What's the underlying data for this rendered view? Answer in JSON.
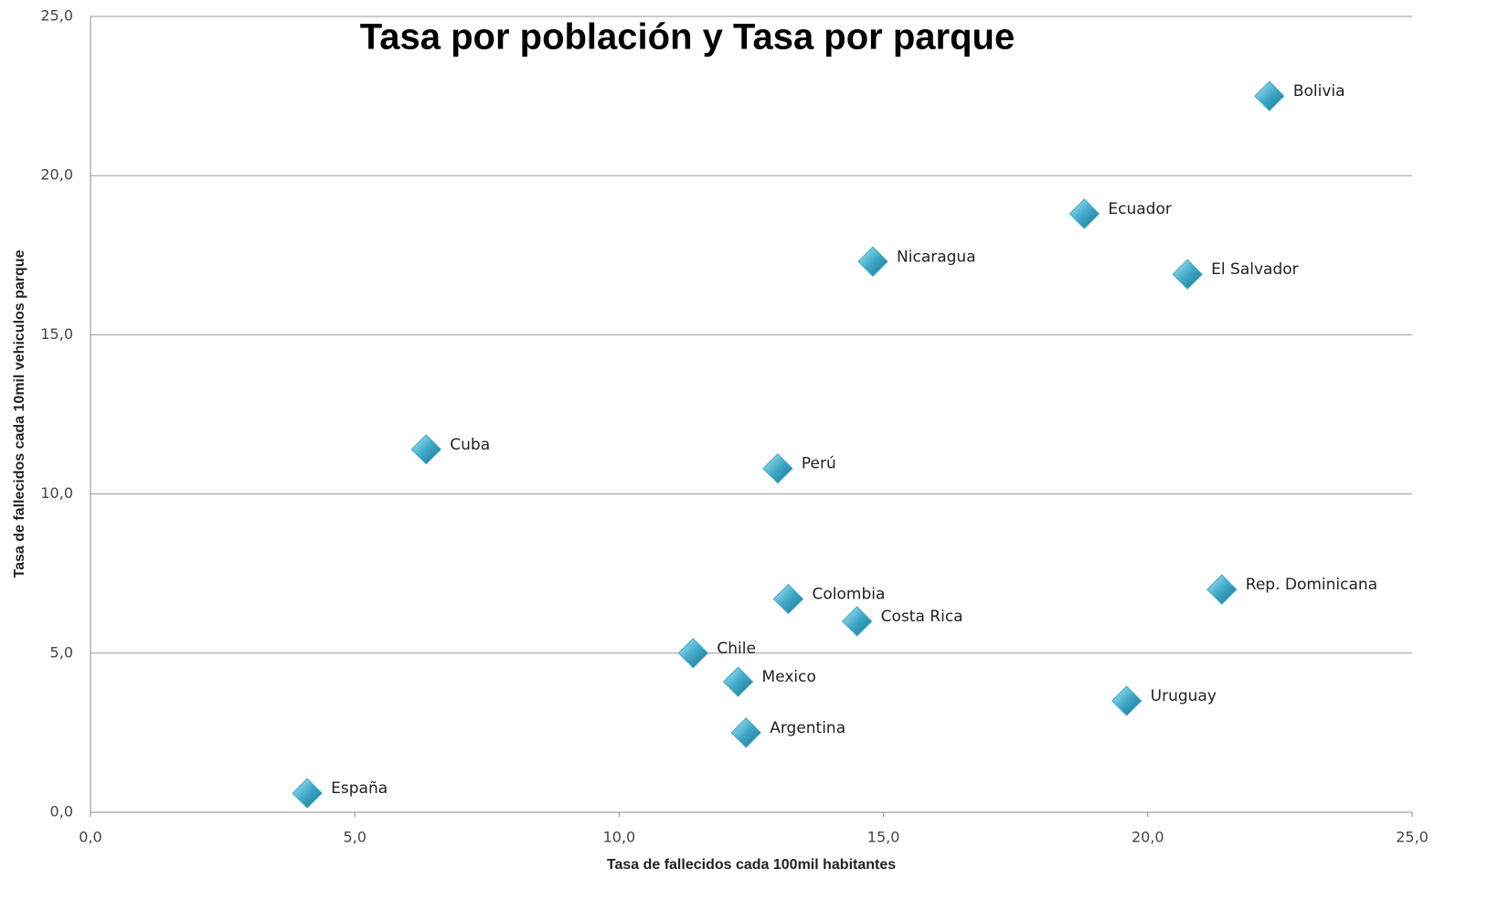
{
  "chart_data": {
    "type": "scatter",
    "title": "Tasa por población y Tasa por parque",
    "xlabel": "Tasa  de fallecidos  cada  100mil habitantes",
    "ylabel": "Tasa  de fallecidos  cada  10mil vehiculos  parque",
    "color": "#3fa9c8",
    "labels": [
      "España",
      "Cuba",
      "Chile",
      "Mexico",
      "Argentina",
      "Perú",
      "Colombia",
      "Costa Rica",
      "Nicaragua",
      "Ecuador",
      "Uruguay",
      "El Salvador",
      "Rep. Dominicana",
      "Bolivia"
    ],
    "x": [
      4.1,
      6.35,
      11.4,
      12.25,
      12.4,
      13.0,
      13.2,
      14.5,
      14.8,
      18.8,
      19.6,
      20.75,
      21.4,
      22.3
    ],
    "values": [
      0.6,
      11.4,
      5.0,
      4.1,
      2.5,
      10.8,
      6.7,
      6.0,
      17.3,
      18.8,
      3.5,
      16.9,
      7.0,
      22.5
    ],
    "xlim": [
      0,
      25
    ],
    "ylim": [
      0,
      25
    ],
    "xticks": [
      {
        "value": 0,
        "label": "0,0"
      },
      {
        "value": 5,
        "label": "5,0"
      },
      {
        "value": 10,
        "label": "10,0"
      },
      {
        "value": 15,
        "label": "15,0"
      },
      {
        "value": 20,
        "label": "20,0"
      },
      {
        "value": 25,
        "label": "25,0"
      }
    ],
    "yticks": [
      {
        "value": 0,
        "label": "0,0"
      },
      {
        "value": 5,
        "label": "5,0"
      },
      {
        "value": 10,
        "label": "10,0"
      },
      {
        "value": 15,
        "label": "15,0"
      },
      {
        "value": 20,
        "label": "20,0"
      },
      {
        "value": 25,
        "label": "25,0"
      }
    ],
    "grid": true
  }
}
